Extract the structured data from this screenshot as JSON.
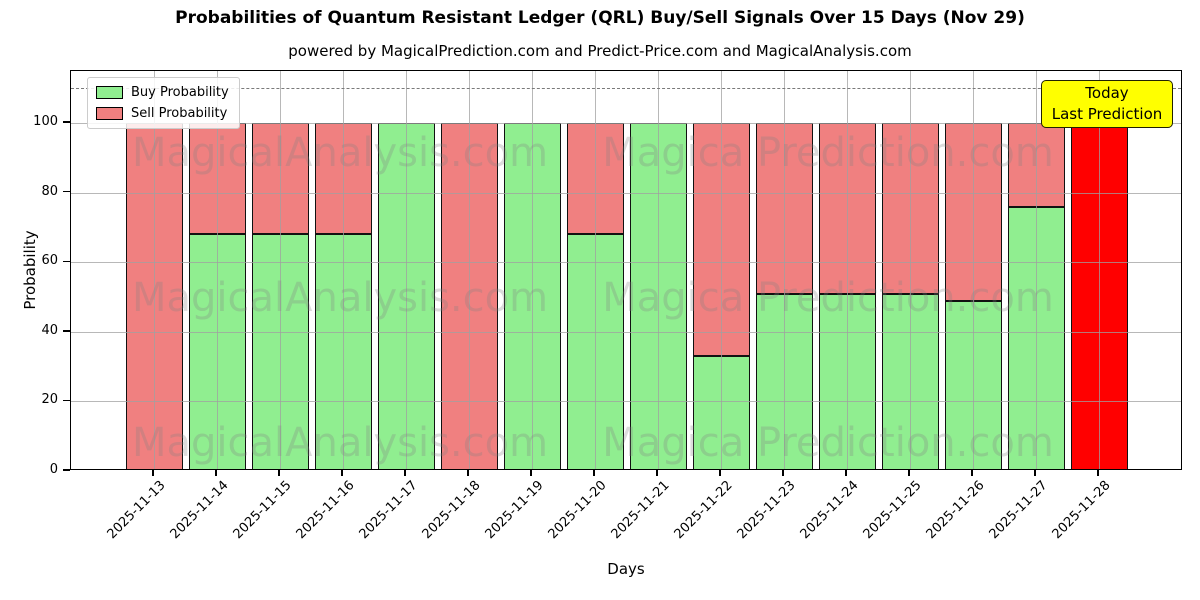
{
  "chart_data": {
    "type": "bar",
    "stacked": true,
    "title": "Probabilities of Quantum Resistant Ledger (QRL) Buy/Sell Signals Over 15 Days (Nov 29)",
    "subtitle": "powered by MagicalPrediction.com and Predict-Price.com and MagicalAnalysis.com",
    "xlabel": "Days",
    "ylabel": "Probability",
    "categories": [
      "2025-11-13",
      "2025-11-14",
      "2025-11-15",
      "2025-11-16",
      "2025-11-17",
      "2025-11-18",
      "2025-11-19",
      "2025-11-20",
      "2025-11-21",
      "2025-11-22",
      "2025-11-23",
      "2025-11-24",
      "2025-11-25",
      "2025-11-26",
      "2025-11-27",
      "2025-11-28"
    ],
    "series": [
      {
        "name": "Buy Probability",
        "color": "#90ee90",
        "values": [
          0,
          68,
          68,
          68,
          100,
          0,
          100,
          68,
          100,
          33,
          51,
          51,
          51,
          49,
          76,
          0
        ]
      },
      {
        "name": "Sell Probability",
        "color": "#f08080",
        "values": [
          100,
          32,
          32,
          32,
          0,
          100,
          0,
          32,
          0,
          67,
          49,
          49,
          49,
          51,
          24,
          100
        ]
      }
    ],
    "highlight": {
      "index": 15,
      "color": "#ff0000"
    },
    "annotation": {
      "line1": "Today",
      "line2": "Last Prediction",
      "box_color": "#ffff00"
    },
    "ylim": [
      0,
      115
    ],
    "yticks": [
      0,
      20,
      40,
      60,
      80,
      100
    ],
    "dashed_line_y": 110,
    "grid": true,
    "legend_position": "upper left",
    "watermarks": [
      "MagicalAnalysis.com",
      "Magica Prediction.com"
    ],
    "colors": {
      "bar_edge": "#111111",
      "grid": "#a0a0a0",
      "dashed": "#7a7a7a",
      "last_bar": "#ff0000"
    }
  }
}
